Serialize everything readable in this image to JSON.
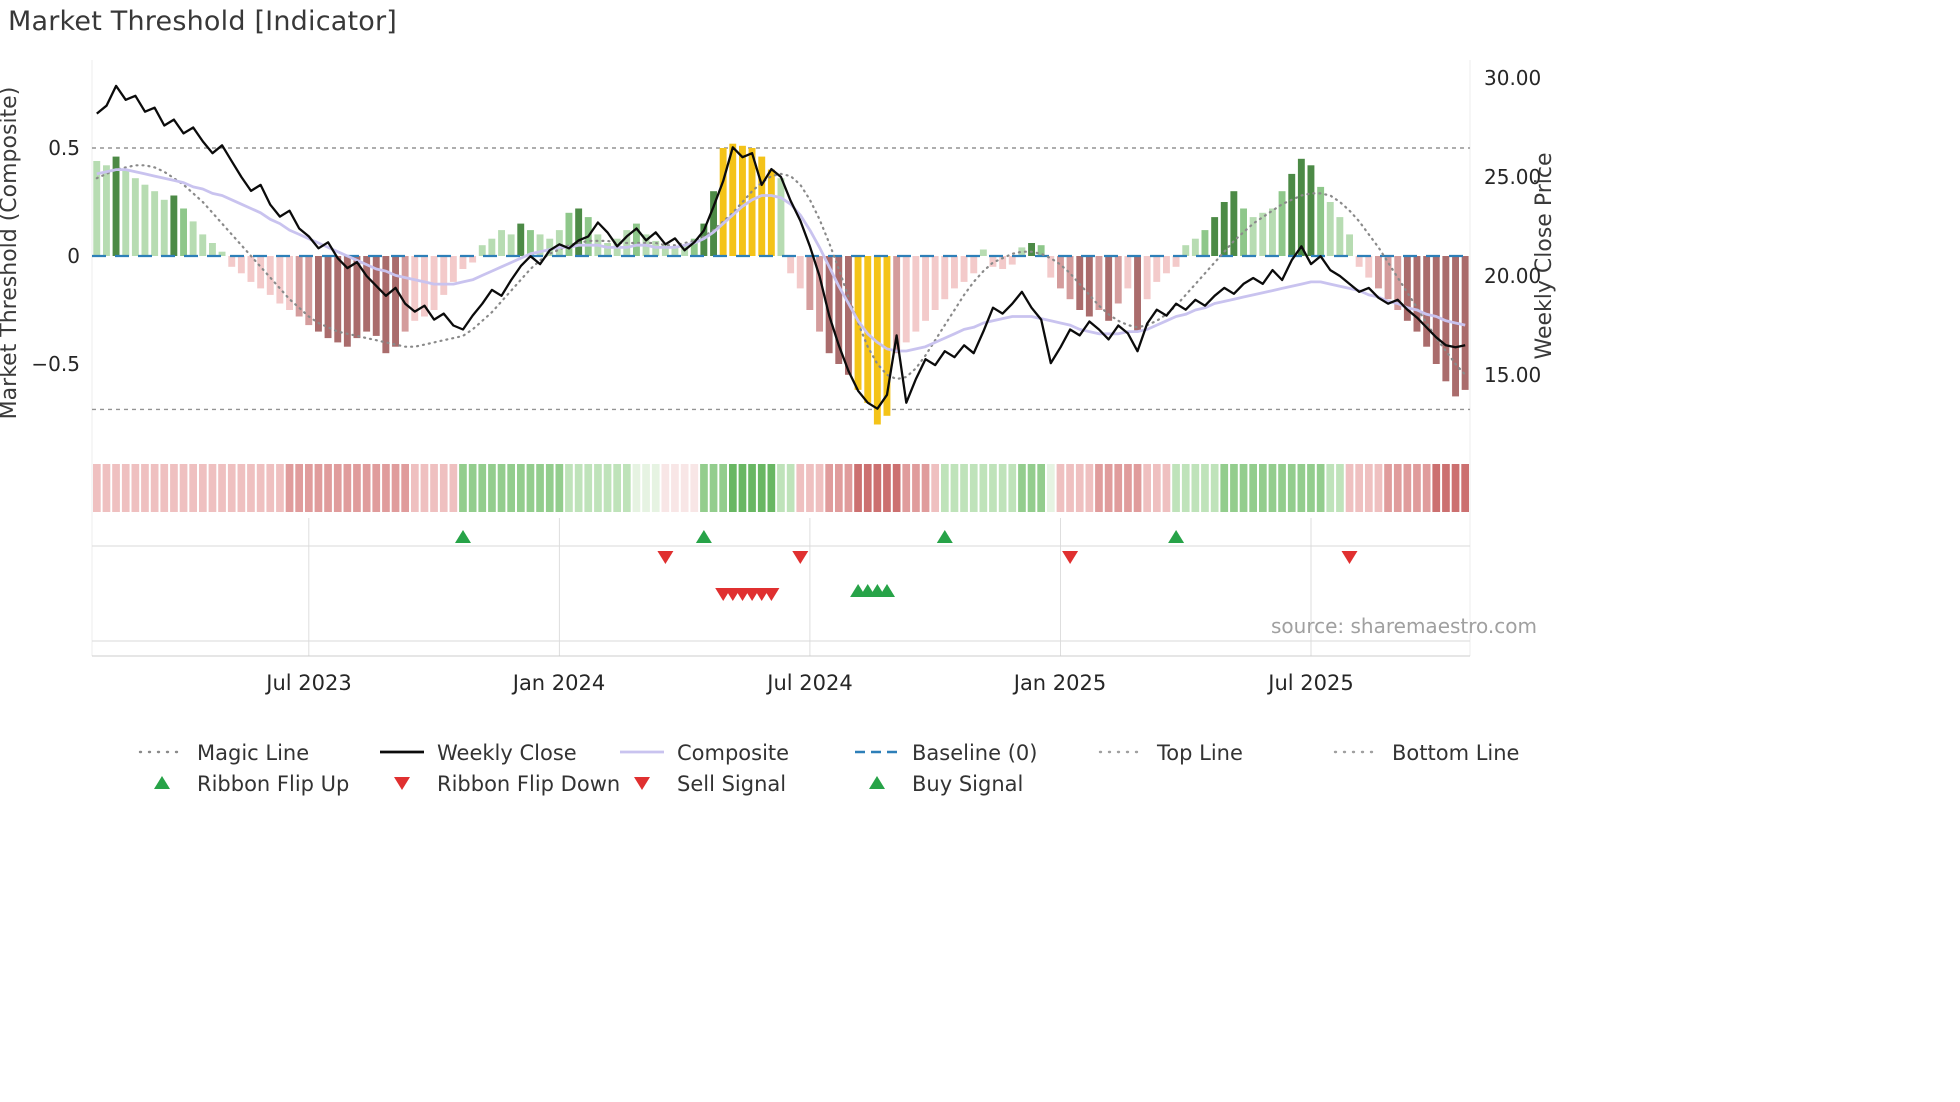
{
  "title": "Market Threshold [Indicator]",
  "source_text": "source: sharemaestro.com",
  "colors": {
    "weekly_close": "#0b0b0b",
    "composite_line": "#c9c3ef",
    "magic_line": "#8a8a8a",
    "baseline": "#2d7fb8",
    "top_bottom_line": "#949494",
    "signal_up": "#27a348",
    "signal_down": "#e03030",
    "bar": {
      "lg": "#b7dcb2",
      "mg": "#8ec78a",
      "dg": "#4c8a46",
      "lp": "#f3caca",
      "mp": "#d49c9c",
      "dr": "#aa6c6c",
      "gold": "#f4c318"
    },
    "ribbon": {
      "r0": "#f8e6e6",
      "r1": "#efc0c0",
      "r2": "#e09c9c",
      "r3": "#cc7070",
      "g0": "#e6f3e2",
      "g1": "#bfe3ba",
      "g2": "#93cd8d",
      "g3": "#69b763"
    }
  },
  "chart_data": {
    "type": "combo",
    "title": "Market Threshold [Indicator]",
    "left_axis": {
      "label": "Market Threshold (Composite)",
      "tick_labels": [
        "0.5",
        "0",
        "−0.5"
      ],
      "tick_values": [
        0.5,
        0,
        -0.5
      ],
      "range": [
        -0.9,
        0.92
      ]
    },
    "right_axis": {
      "label": "Weekly Close Price",
      "tick_labels": [
        "30.00",
        "25.00",
        "20.00",
        "15.00"
      ],
      "tick_values": [
        30,
        25,
        20,
        15
      ],
      "range": [
        11.3,
        30.9
      ]
    },
    "x_axis": {
      "tick_labels": [
        "Jul 2023",
        "Jan 2024",
        "Jul 2024",
        "Jan 2025",
        "Jul 2025"
      ],
      "tick_weeks": [
        22,
        48,
        74,
        100,
        126
      ],
      "weeks_total": 143,
      "unit": "weeks"
    },
    "reference_lines": {
      "top_line": 0.5,
      "bottom_line": -0.71,
      "baseline": 0
    },
    "series": {
      "composite_bars": {
        "values": [
          0.44,
          0.42,
          0.46,
          0.4,
          0.36,
          0.33,
          0.3,
          0.26,
          0.28,
          0.22,
          0.16,
          0.1,
          0.06,
          0.02,
          -0.05,
          -0.08,
          -0.12,
          -0.15,
          -0.18,
          -0.22,
          -0.25,
          -0.28,
          -0.32,
          -0.35,
          -0.38,
          -0.4,
          -0.42,
          -0.38,
          -0.35,
          -0.37,
          -0.45,
          -0.42,
          -0.35,
          -0.3,
          -0.28,
          -0.25,
          -0.18,
          -0.12,
          -0.06,
          -0.03,
          0.05,
          0.08,
          0.12,
          0.1,
          0.15,
          0.12,
          0.1,
          0.08,
          0.12,
          0.2,
          0.22,
          0.18,
          0.1,
          0.06,
          0.08,
          0.12,
          0.15,
          0.1,
          0.07,
          0.05,
          0.04,
          0.05,
          0.08,
          0.15,
          0.3,
          0.5,
          0.52,
          0.51,
          0.5,
          0.46,
          0.4,
          0.36,
          -0.08,
          -0.15,
          -0.25,
          -0.35,
          -0.45,
          -0.5,
          -0.55,
          -0.62,
          -0.68,
          -0.78,
          -0.74,
          -0.45,
          -0.4,
          -0.35,
          -0.3,
          -0.25,
          -0.2,
          -0.15,
          -0.12,
          -0.08,
          0.03,
          -0.05,
          -0.06,
          -0.04,
          0.04,
          0.06,
          0.05,
          -0.1,
          -0.15,
          -0.2,
          -0.25,
          -0.28,
          -0.25,
          -0.3,
          -0.22,
          -0.15,
          -0.35,
          -0.2,
          -0.12,
          -0.08,
          -0.05,
          0.05,
          0.08,
          0.12,
          0.18,
          0.25,
          0.3,
          0.22,
          0.18,
          0.2,
          0.22,
          0.3,
          0.38,
          0.45,
          0.42,
          0.32,
          0.25,
          0.18,
          0.1,
          -0.05,
          -0.1,
          -0.15,
          -0.2,
          -0.25,
          -0.3,
          -0.35,
          -0.42,
          -0.5,
          -0.58,
          -0.65,
          -0.62
        ],
        "colors": [
          "lg",
          "lg",
          "dg",
          "lg",
          "lg",
          "lg",
          "lg",
          "lg",
          "dg",
          "mg",
          "lg",
          "lg",
          "lg",
          "lg",
          "lp",
          "lp",
          "lp",
          "lp",
          "lp",
          "lp",
          "lp",
          "mp",
          "mp",
          "dr",
          "dr",
          "dr",
          "dr",
          "dr",
          "dr",
          "dr",
          "dr",
          "dr",
          "mp",
          "lp",
          "lp",
          "lp",
          "lp",
          "lp",
          "lp",
          "lp",
          "lg",
          "lg",
          "lg",
          "lg",
          "dg",
          "mg",
          "lg",
          "lg",
          "lg",
          "mg",
          "dg",
          "mg",
          "lg",
          "lg",
          "lg",
          "lg",
          "mg",
          "lg",
          "lg",
          "lg",
          "lg",
          "lg",
          "mg",
          "dg",
          "dg",
          "gold",
          "gold",
          "gold",
          "gold",
          "gold",
          "gold",
          "lg",
          "lp",
          "lp",
          "mp",
          "mp",
          "dr",
          "dr",
          "dr",
          "gold",
          "gold",
          "gold",
          "gold",
          "mp",
          "lp",
          "lp",
          "lp",
          "lp",
          "lp",
          "lp",
          "lp",
          "lp",
          "lg",
          "lp",
          "lp",
          "lp",
          "lg",
          "dg",
          "mg",
          "lp",
          "mp",
          "mp",
          "dr",
          "dr",
          "mp",
          "dr",
          "mp",
          "lp",
          "dr",
          "lp",
          "lp",
          "lp",
          "lp",
          "lg",
          "lg",
          "mg",
          "dg",
          "dg",
          "dg",
          "mg",
          "lg",
          "lg",
          "lg",
          "mg",
          "dg",
          "dg",
          "dg",
          "mg",
          "lg",
          "lg",
          "lg",
          "lp",
          "lp",
          "mp",
          "mp",
          "mp",
          "dr",
          "dr",
          "dr",
          "dr",
          "dr",
          "dr",
          "dr"
        ]
      },
      "weekly_close": [
        28.2,
        28.6,
        29.6,
        28.9,
        29.1,
        28.3,
        28.5,
        27.6,
        27.9,
        27.2,
        27.5,
        26.8,
        26.2,
        26.6,
        25.8,
        25.0,
        24.3,
        24.6,
        23.6,
        23.0,
        23.3,
        22.4,
        22.0,
        21.4,
        21.7,
        20.9,
        20.4,
        20.7,
        20.0,
        19.5,
        19.0,
        19.4,
        18.6,
        18.2,
        18.5,
        17.8,
        18.1,
        17.5,
        17.3,
        18.0,
        18.6,
        19.3,
        19.0,
        19.8,
        20.5,
        21.0,
        20.6,
        21.3,
        21.6,
        21.4,
        21.8,
        22.0,
        22.7,
        22.2,
        21.5,
        22.0,
        22.4,
        21.8,
        22.2,
        21.6,
        21.9,
        21.3,
        21.7,
        22.3,
        23.5,
        24.8,
        26.5,
        26.0,
        26.2,
        24.6,
        25.4,
        25.0,
        23.8,
        22.8,
        21.5,
        20.0,
        18.0,
        16.5,
        15.2,
        14.2,
        13.6,
        13.3,
        14.0,
        17.0,
        13.6,
        14.8,
        15.8,
        15.5,
        16.2,
        15.9,
        16.5,
        16.1,
        17.2,
        18.4,
        18.1,
        18.6,
        19.2,
        18.4,
        17.8,
        15.6,
        16.4,
        17.3,
        17.0,
        17.7,
        17.3,
        16.8,
        17.5,
        17.1,
        16.2,
        17.6,
        18.3,
        18.0,
        18.6,
        18.3,
        18.8,
        18.5,
        19.0,
        19.4,
        19.1,
        19.6,
        19.9,
        19.6,
        20.3,
        19.8,
        20.8,
        21.5,
        20.6,
        21.0,
        20.3,
        20.0,
        19.6,
        19.2,
        19.4,
        18.9,
        18.6,
        18.8,
        18.3,
        17.9,
        17.4,
        16.9,
        16.5,
        16.4,
        16.5
      ],
      "composite_line": [
        0.38,
        0.39,
        0.4,
        0.4,
        0.39,
        0.38,
        0.37,
        0.36,
        0.35,
        0.34,
        0.32,
        0.31,
        0.29,
        0.28,
        0.26,
        0.24,
        0.22,
        0.2,
        0.17,
        0.15,
        0.12,
        0.1,
        0.08,
        0.06,
        0.04,
        0.02,
        0.0,
        -0.02,
        -0.04,
        -0.06,
        -0.07,
        -0.09,
        -0.1,
        -0.11,
        -0.12,
        -0.13,
        -0.13,
        -0.13,
        -0.12,
        -0.11,
        -0.09,
        -0.07,
        -0.05,
        -0.03,
        -0.01,
        0.01,
        0.02,
        0.03,
        0.04,
        0.04,
        0.05,
        0.05,
        0.05,
        0.04,
        0.04,
        0.04,
        0.05,
        0.05,
        0.04,
        0.04,
        0.04,
        0.05,
        0.06,
        0.08,
        0.11,
        0.15,
        0.19,
        0.23,
        0.26,
        0.28,
        0.28,
        0.27,
        0.24,
        0.19,
        0.12,
        0.04,
        -0.05,
        -0.14,
        -0.22,
        -0.3,
        -0.36,
        -0.4,
        -0.43,
        -0.44,
        -0.44,
        -0.43,
        -0.42,
        -0.4,
        -0.38,
        -0.36,
        -0.34,
        -0.33,
        -0.31,
        -0.3,
        -0.29,
        -0.28,
        -0.28,
        -0.28,
        -0.29,
        -0.3,
        -0.31,
        -0.32,
        -0.34,
        -0.35,
        -0.36,
        -0.36,
        -0.36,
        -0.35,
        -0.35,
        -0.34,
        -0.32,
        -0.3,
        -0.28,
        -0.27,
        -0.25,
        -0.24,
        -0.22,
        -0.21,
        -0.2,
        -0.19,
        -0.18,
        -0.17,
        -0.16,
        -0.15,
        -0.14,
        -0.13,
        -0.12,
        -0.12,
        -0.13,
        -0.14,
        -0.15,
        -0.16,
        -0.18,
        -0.19,
        -0.21,
        -0.22,
        -0.24,
        -0.25,
        -0.27,
        -0.28,
        -0.3,
        -0.31,
        -0.32
      ],
      "magic_line": [
        0.36,
        0.38,
        0.4,
        0.41,
        0.42,
        0.42,
        0.41,
        0.39,
        0.36,
        0.33,
        0.29,
        0.25,
        0.2,
        0.15,
        0.1,
        0.05,
        0.0,
        -0.05,
        -0.1,
        -0.15,
        -0.2,
        -0.24,
        -0.28,
        -0.31,
        -0.33,
        -0.35,
        -0.36,
        -0.37,
        -0.38,
        -0.39,
        -0.4,
        -0.41,
        -0.42,
        -0.42,
        -0.41,
        -0.4,
        -0.39,
        -0.38,
        -0.37,
        -0.34,
        -0.3,
        -0.26,
        -0.21,
        -0.16,
        -0.11,
        -0.06,
        -0.02,
        0.01,
        0.03,
        0.05,
        0.06,
        0.07,
        0.07,
        0.07,
        0.06,
        0.06,
        0.06,
        0.06,
        0.06,
        0.05,
        0.05,
        0.06,
        0.07,
        0.09,
        0.12,
        0.16,
        0.2,
        0.25,
        0.3,
        0.34,
        0.37,
        0.38,
        0.37,
        0.33,
        0.26,
        0.17,
        0.06,
        -0.06,
        -0.19,
        -0.31,
        -0.42,
        -0.5,
        -0.55,
        -0.57,
        -0.56,
        -0.52,
        -0.46,
        -0.39,
        -0.32,
        -0.25,
        -0.18,
        -0.12,
        -0.07,
        -0.03,
        -0.01,
        0.01,
        0.02,
        0.02,
        0.01,
        -0.01,
        -0.04,
        -0.08,
        -0.13,
        -0.18,
        -0.23,
        -0.27,
        -0.3,
        -0.32,
        -0.33,
        -0.32,
        -0.3,
        -0.27,
        -0.23,
        -0.18,
        -0.13,
        -0.08,
        -0.03,
        0.02,
        0.07,
        0.11,
        0.15,
        0.18,
        0.21,
        0.24,
        0.26,
        0.28,
        0.29,
        0.29,
        0.28,
        0.25,
        0.21,
        0.16,
        0.1,
        0.04,
        -0.03,
        -0.1,
        -0.17,
        -0.24,
        -0.31,
        -0.38,
        -0.44,
        -0.5,
        -0.55
      ]
    },
    "ribbon_rle": [
      [
        "r1",
        20
      ],
      [
        "r2",
        13
      ],
      [
        "r1",
        5
      ],
      [
        "g2",
        11
      ],
      [
        "g1",
        7
      ],
      [
        "g0",
        3
      ],
      [
        "r0",
        4
      ],
      [
        "g2",
        3
      ],
      [
        "g3",
        5
      ],
      [
        "g1",
        2
      ],
      [
        "r1",
        3
      ],
      [
        "r2",
        3
      ],
      [
        "r3",
        5
      ],
      [
        "r2",
        3
      ],
      [
        "r1",
        1
      ],
      [
        "g1",
        8
      ],
      [
        "g2",
        3
      ],
      [
        "g0",
        1
      ],
      [
        "r1",
        4
      ],
      [
        "r2",
        5
      ],
      [
        "r1",
        3
      ],
      [
        "g1",
        5
      ],
      [
        "g2",
        11
      ],
      [
        "g1",
        2
      ],
      [
        "r1",
        4
      ],
      [
        "r2",
        5
      ],
      [
        "r3",
        4
      ]
    ],
    "signals": {
      "ribbon_flip_up_weeks": [
        38,
        63,
        88,
        112
      ],
      "ribbon_flip_down_weeks": [
        59,
        73,
        101,
        130
      ],
      "sell_signal_weeks": [
        65,
        66,
        67,
        68,
        69,
        70
      ],
      "buy_signal_weeks": [
        79,
        80,
        81,
        82
      ]
    }
  },
  "legend": {
    "rows": [
      [
        {
          "label": "Magic Line",
          "swatch": "dotted",
          "color": "#8a8a8a"
        },
        {
          "label": "Weekly Close",
          "swatch": "solid",
          "color": "#0b0b0b"
        },
        {
          "label": "Composite",
          "swatch": "solid",
          "color": "#c9c3ef"
        },
        {
          "label": "Baseline (0)",
          "swatch": "dashed",
          "color": "#2d7fb8"
        },
        {
          "label": "Top Line",
          "swatch": "dotted",
          "color": "#a0a0a0"
        },
        {
          "label": "Bottom Line",
          "swatch": "dotted",
          "color": "#a0a0a0"
        }
      ],
      [
        {
          "label": "Ribbon Flip Up",
          "swatch": "triangle-up",
          "color": "#27a348"
        },
        {
          "label": "Ribbon Flip Down",
          "swatch": "triangle-down",
          "color": "#e03030"
        },
        {
          "label": "Sell Signal",
          "swatch": "triangle-down",
          "color": "#e03030"
        },
        {
          "label": "Buy Signal",
          "swatch": "triangle-up",
          "color": "#27a348"
        }
      ]
    ]
  }
}
